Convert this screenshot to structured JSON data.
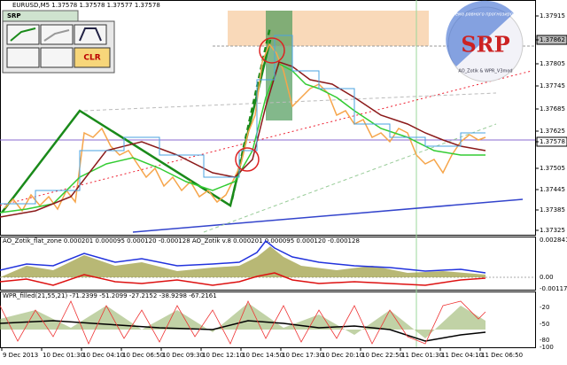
{
  "window": {
    "header": "EURUSD,M5  1.37578 1.37578 1.37577 1.37578",
    "toolbar": {
      "tab": "SRP",
      "clear_button": "CLR"
    },
    "logo": {
      "title": "SRP",
      "ring_text": "Система равного прогнозирования",
      "subtitle": "AO_Zotik & WPR_V3mod"
    },
    "price_axis": [
      "1.37915",
      "1.37862",
      "1.37805",
      "1.37745",
      "1.37685",
      "1.37625",
      "1.37578",
      "1.37505",
      "1.37445",
      "1.37385",
      "1.37325"
    ],
    "ao_panel": {
      "label": "AO_Zotik_flat_zone 0.000201 0.000095 0.000120 -0.000128  AO_Zotik v.8 0.000201 0.000095 0.000120 -0.000128",
      "axis": [
        "0.002841",
        "0.00",
        "-0.00117"
      ]
    },
    "wpr_panel": {
      "label": "WPR_filled(21,55,21) -71.2399 -51.2099 -27.2152 -38.9298 -67.2161",
      "axis": [
        "-20",
        "-50",
        "-80",
        "-100"
      ]
    },
    "time_axis": [
      "9 Dec 2013",
      "10 Dec 01:30",
      "10 Dec 04:10",
      "10 Dec 06:50",
      "10 Dec 09:30",
      "10 Dec 12:10",
      "10 Dec 14:50",
      "10 Dec 17:30",
      "10 Dec 20:10",
      "10 Dec 22:50",
      "11 Dec 01:30",
      "11 Dec 04:10",
      "11 Dec 06:50"
    ]
  }
}
